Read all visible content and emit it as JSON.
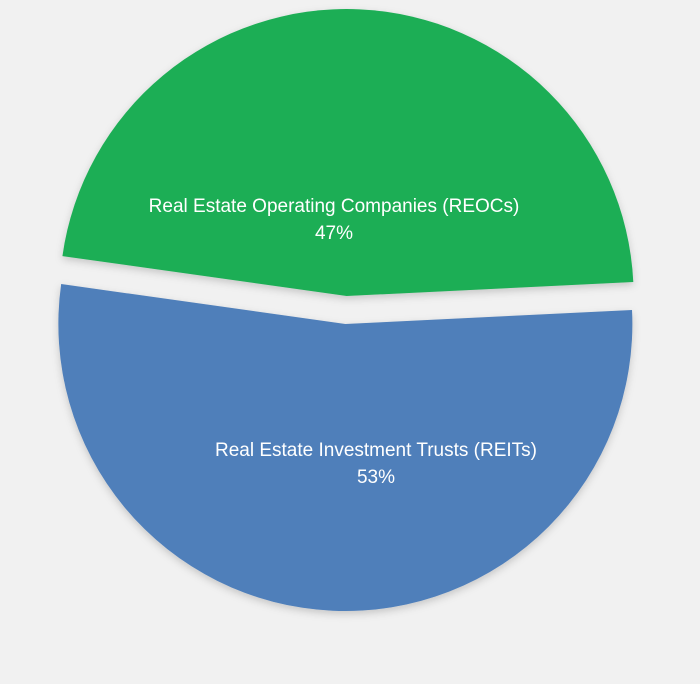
{
  "chart_data": {
    "type": "pie",
    "exploded": true,
    "slices": [
      {
        "label": "Real Estate Operating Companies (REOCs)",
        "value": 47,
        "value_label": "47%",
        "color": "#1dae55"
      },
      {
        "label": "Real Estate Investment Trusts (REITs)",
        "value": 53,
        "value_label": "53%",
        "color": "#4f7fba"
      }
    ]
  },
  "colors": {
    "background": "#f1f1f1",
    "label_text": "#ffffff"
  }
}
